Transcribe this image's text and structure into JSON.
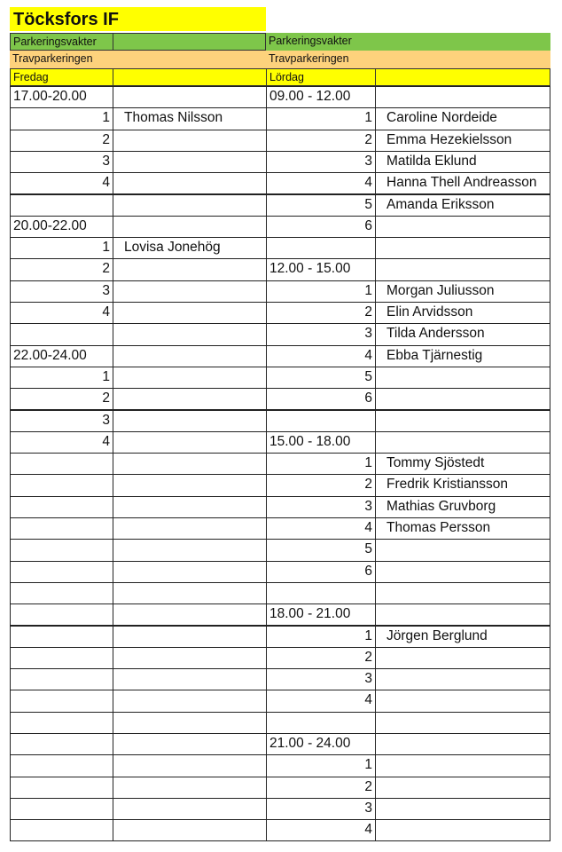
{
  "title": "Töcksfors IF",
  "left": {
    "group": "Parkeringsvakter",
    "location": "Travparkeringen",
    "day": "Fredag",
    "rows": [
      {
        "label": "17.00-20.00"
      },
      {
        "num": "1",
        "name": "Thomas Nilsson"
      },
      {
        "num": "2"
      },
      {
        "num": "3"
      },
      {
        "num": "4"
      },
      {},
      {
        "label": "20.00-22.00"
      },
      {
        "num": "1",
        "name": "Lovisa Jonehög"
      },
      {
        "num": "2"
      },
      {
        "num": "3"
      },
      {
        "num": "4"
      },
      {},
      {
        "label": "22.00-24.00"
      },
      {
        "num": "1"
      },
      {
        "num": "2"
      },
      {
        "num": "3"
      },
      {
        "num": "4"
      },
      {},
      {},
      {},
      {},
      {},
      {},
      {},
      {},
      {},
      {},
      {},
      {},
      {},
      {},
      {},
      {},
      {},
      {}
    ]
  },
  "right": {
    "group": "Parkeringsvakter",
    "location": "Travparkeringen",
    "day": "Lördag",
    "rows": [
      {
        "label": "09.00 - 12.00"
      },
      {
        "num": "1",
        "name": "Caroline Nordeide"
      },
      {
        "num": "2",
        "name": "Emma Hezekielsson"
      },
      {
        "num": "3",
        "name": "Matilda Eklund"
      },
      {
        "num": "4",
        "name": "Hanna Thell Andreasson"
      },
      {
        "num": "5",
        "name": "Amanda Eriksson"
      },
      {
        "num": "6"
      },
      {},
      {
        "label": "12.00 - 15.00"
      },
      {
        "num": "1",
        "name": "Morgan Juliusson"
      },
      {
        "num": "2",
        "name": "Elin Arvidsson"
      },
      {
        "num": "3",
        "name": "Tilda Andersson"
      },
      {
        "num": "4",
        "name": "Ebba Tjärnestig"
      },
      {
        "num": "5"
      },
      {
        "num": "6"
      },
      {},
      {
        "label": "15.00 - 18.00"
      },
      {
        "num": "1",
        "name": "Tommy Sjöstedt"
      },
      {
        "num": "2",
        "name": "Fredrik Kristiansson"
      },
      {
        "num": "3",
        "name": "Mathias Gruvborg"
      },
      {
        "num": "4",
        "name": "Thomas Persson"
      },
      {
        "num": "5"
      },
      {
        "num": "6"
      },
      {},
      {
        "label": "18.00 - 21.00"
      },
      {
        "num": "1",
        "name": "Jörgen Berglund"
      },
      {
        "num": "2"
      },
      {
        "num": "3"
      },
      {
        "num": "4"
      },
      {},
      {
        "label": "21.00 - 24.00"
      },
      {
        "num": "1"
      },
      {
        "num": "2"
      },
      {
        "num": "3"
      },
      {
        "num": "4"
      }
    ]
  },
  "colors": {
    "title_bg": "#ffff00",
    "group_bg": "#7ec64a",
    "location_bg": "#fdd27c",
    "day_bg": "#ffff00"
  }
}
